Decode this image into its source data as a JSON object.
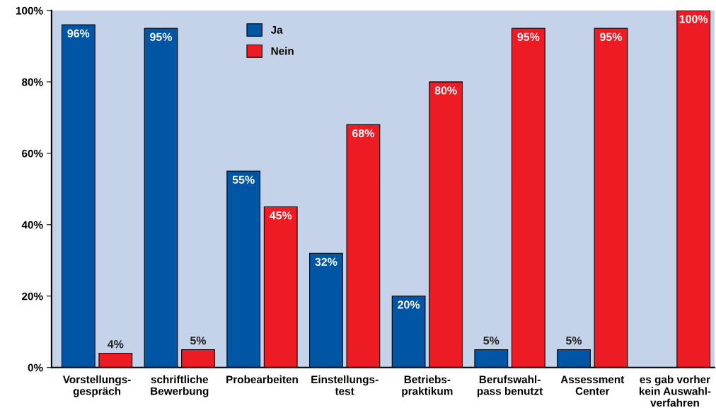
{
  "chart_data": {
    "type": "bar",
    "categories": [
      "Vorstellungs-\ngespräch",
      "schriftliche\nBewerbung",
      "Probearbeiten",
      "Einstellungs-\ntest",
      "Betriebs-\npraktikum",
      "Berufswahl-\npass benutzt",
      "Assessment\nCenter",
      "es gab vorher\nkein Auswahl-\nverfahren"
    ],
    "series": [
      {
        "name": "Ja",
        "color": "#0055a5",
        "values": [
          96,
          95,
          55,
          32,
          20,
          5,
          5,
          null
        ],
        "value_labels": [
          "96%",
          "95%",
          "55%",
          "32%",
          "20%",
          "5%",
          "5%",
          null
        ]
      },
      {
        "name": "Nein",
        "color": "#ed1c24",
        "values": [
          4,
          5,
          45,
          68,
          80,
          95,
          95,
          100
        ],
        "value_labels": [
          "4%",
          "5%",
          "45%",
          "68%",
          "80%",
          "95%",
          "95%",
          "100%"
        ]
      }
    ],
    "ylim": [
      0,
      100
    ],
    "yticks": [
      {
        "value": 0,
        "label": "0%"
      },
      {
        "value": 20,
        "label": "20%"
      },
      {
        "value": 40,
        "label": "40%"
      },
      {
        "value": 60,
        "label": "60%"
      },
      {
        "value": 80,
        "label": "80%"
      },
      {
        "value": 100,
        "label": "100%"
      }
    ],
    "grid": false,
    "legend": "top"
  }
}
